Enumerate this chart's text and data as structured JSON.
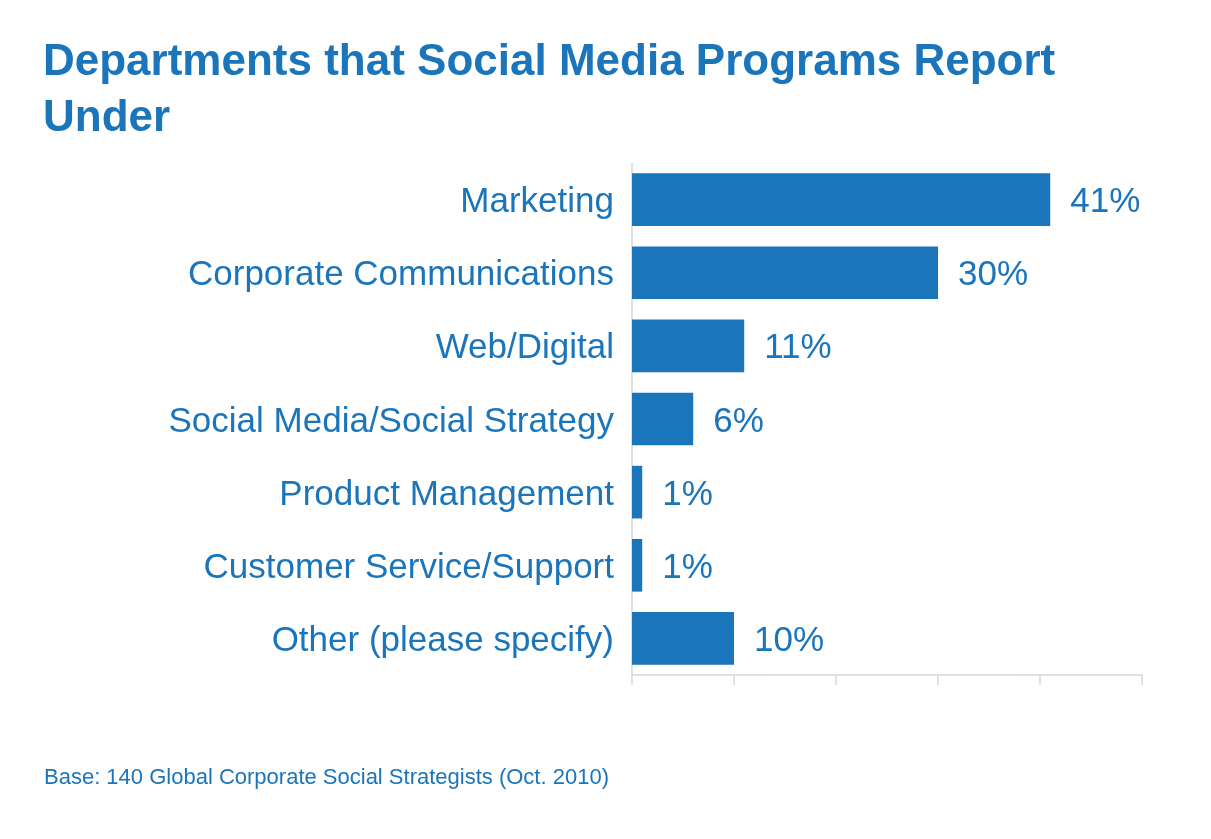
{
  "chart_data": {
    "type": "bar",
    "orientation": "horizontal",
    "title": "Departments that Social Media Programs Report Under",
    "categories": [
      "Marketing",
      "Corporate Communications",
      "Web/Digital",
      "Social Media/Social Strategy",
      "Product Management",
      "Customer Service/Support",
      "Other (please specify)"
    ],
    "values": [
      41,
      30,
      11,
      6,
      1,
      1,
      10
    ],
    "value_labels": [
      "41%",
      "30%",
      "11%",
      "6%",
      "1%",
      "1%",
      "10%"
    ],
    "color": "#1a75bb",
    "xlim": [
      0,
      50
    ],
    "xticks": [
      {
        "value": 0,
        "label": null
      },
      {
        "value": 10,
        "label": null
      },
      {
        "value": 20,
        "label": null
      },
      {
        "value": 30,
        "label": null
      },
      {
        "value": 40,
        "label": null
      },
      {
        "value": 50,
        "label": null
      }
    ],
    "tick_labels": "y",
    "grid": false,
    "annotations": [
      "Base: 140 Global Corporate Social Strategists (Oct. 2010)"
    ]
  }
}
